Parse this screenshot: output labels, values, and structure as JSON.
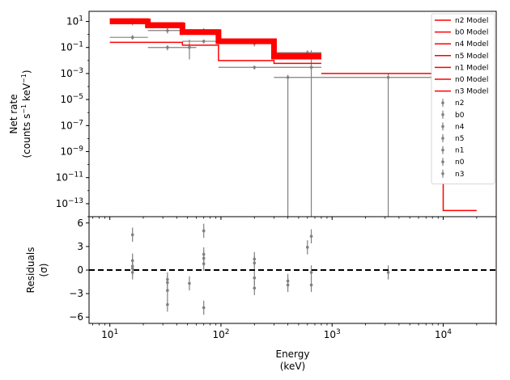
{
  "chart_data": {
    "type": "line",
    "xlabel": [
      "Energy",
      "(keV)"
    ],
    "x_scale": "log",
    "xlim": [
      6.5,
      30000
    ],
    "x_ticks": [
      {
        "v": 10,
        "base": "10",
        "exp": "1"
      },
      {
        "v": 100,
        "base": "10",
        "exp": "2"
      },
      {
        "v": 1000,
        "base": "10",
        "exp": "3"
      },
      {
        "v": 10000,
        "base": "10",
        "exp": "4"
      }
    ],
    "top_panel": {
      "ylabel": [
        "Net rate",
        "(counts s",
        "−1",
        " keV",
        "−1",
        ")"
      ],
      "y_scale": "log",
      "ylim": [
        1e-14,
        60
      ],
      "y_ticks": [
        {
          "v": 10,
          "base": "10",
          "exp": "1"
        },
        {
          "v": 0.1,
          "base": "10",
          "exp": "−1"
        },
        {
          "v": 0.001,
          "base": "10",
          "exp": "−3"
        },
        {
          "v": 1e-05,
          "base": "10",
          "exp": "−5"
        },
        {
          "v": 1e-07,
          "base": "10",
          "exp": "−7"
        },
        {
          "v": 1e-09,
          "base": "10",
          "exp": "−9"
        },
        {
          "v": 1e-11,
          "base": "10",
          "exp": "−11"
        },
        {
          "v": 1e-13,
          "base": "10",
          "exp": "−13"
        }
      ],
      "model_color": "#ff0000",
      "data_color": "#808080",
      "model_steps": [
        {
          "edges": [
            10,
            22,
            45,
            95,
            300,
            800
          ],
          "values": [
            10,
            5,
            1.5,
            0.3,
            0.02
          ],
          "width": 7
        },
        {
          "edges": [
            10,
            22,
            45,
            95,
            300,
            800
          ],
          "values": [
            14,
            7,
            2,
            0.4,
            0.03
          ],
          "width": 3
        },
        {
          "edges": [
            10,
            22,
            45,
            95,
            300,
            800
          ],
          "values": [
            0.25,
            0.25,
            0.15,
            0.01,
            0.006
          ],
          "width": 1.5
        },
        {
          "edges": [
            10,
            22,
            45,
            95,
            300,
            800
          ],
          "values": [
            8,
            4,
            1.2,
            0.2,
            0.015
          ],
          "width": 1.5
        },
        {
          "edges": [
            800,
            10000,
            20000
          ],
          "values": [
            0.001,
            3e-14
          ],
          "width": 1.5
        }
      ],
      "data_points": [
        {
          "x": 16,
          "xlo": 10,
          "xhi": 22,
          "y": 12,
          "ylo": 8,
          "yhi": 18
        },
        {
          "x": 16,
          "xlo": 10,
          "xhi": 22,
          "y": 8,
          "ylo": 5,
          "yhi": 12
        },
        {
          "x": 16,
          "xlo": 10,
          "xhi": 22,
          "y": 0.6,
          "ylo": 0.4,
          "yhi": 0.9
        },
        {
          "x": 33,
          "xlo": 22,
          "xhi": 45,
          "y": 4,
          "ylo": 2.5,
          "yhi": 6
        },
        {
          "x": 33,
          "xlo": 22,
          "xhi": 45,
          "y": 2,
          "ylo": 1.2,
          "yhi": 3
        },
        {
          "x": 33,
          "xlo": 22,
          "xhi": 45,
          "y": 0.1,
          "ylo": 0.06,
          "yhi": 0.15
        },
        {
          "x": 52,
          "xlo": 45,
          "xhi": 60,
          "y": 0.1,
          "ylo": 0.012,
          "yhi": 0.4
        },
        {
          "x": 70,
          "xlo": 45,
          "xhi": 95,
          "y": 2,
          "ylo": 1.2,
          "yhi": 3
        },
        {
          "x": 70,
          "xlo": 45,
          "xhi": 95,
          "y": 1.5,
          "ylo": 1,
          "yhi": 2
        },
        {
          "x": 70,
          "xlo": 45,
          "xhi": 95,
          "y": 0.3,
          "ylo": 0.2,
          "yhi": 0.4
        },
        {
          "x": 200,
          "xlo": 100,
          "xhi": 300,
          "y": 0.2,
          "ylo": 0.12,
          "yhi": 0.3
        },
        {
          "x": 200,
          "xlo": 95,
          "xhi": 300,
          "y": 0.003,
          "ylo": 0.002,
          "yhi": 0.004
        },
        {
          "x": 600,
          "xlo": 300,
          "xhi": 800,
          "y": 0.04,
          "ylo": 0.025,
          "yhi": 0.06
        },
        {
          "x": 600,
          "xlo": 300,
          "xhi": 800,
          "y": 0.02,
          "ylo": 0.012,
          "yhi": 0.03
        },
        {
          "x": 400,
          "xlo": 300,
          "xhi": 800,
          "y": 0.0005,
          "ylo": 1e-15,
          "yhi": 0.0008
        },
        {
          "x": 650,
          "xlo": 300,
          "xhi": 800,
          "y": 0.003,
          "ylo": 1e-15,
          "yhi": 0.06
        },
        {
          "x": 3200,
          "xlo": 800,
          "xhi": 10000,
          "y": 0.0005,
          "ylo": 1e-15,
          "yhi": 0.001
        }
      ],
      "legend": {
        "position": "top-right",
        "model_entries": [
          "n2 Model",
          "b0 Model",
          "n4 Model",
          "n5 Model",
          "n1 Model",
          "n0 Model",
          "n3 Model"
        ],
        "data_entries": [
          "n2",
          "b0",
          "n4",
          "n5",
          "n1",
          "n0",
          "n3"
        ]
      }
    },
    "bottom_panel": {
      "ylabel": [
        "Residuals",
        "(σ)"
      ],
      "ylim": [
        -6.8,
        6.8
      ],
      "y_ticks": [
        6,
        3,
        0,
        -3,
        -6
      ],
      "y_tick_labels": [
        "6",
        "3",
        "0",
        "−3",
        "−6"
      ],
      "zero_line": "dashed",
      "residuals": [
        {
          "x": 16,
          "y": 4.5
        },
        {
          "x": 16,
          "y": 1.2
        },
        {
          "x": 16,
          "y": 0.5
        },
        {
          "x": 16,
          "y": 0.2
        },
        {
          "x": 16,
          "y": -0.3
        },
        {
          "x": 33,
          "y": -1.2
        },
        {
          "x": 33,
          "y": -1.6
        },
        {
          "x": 33,
          "y": -2.6
        },
        {
          "x": 33,
          "y": -4.4
        },
        {
          "x": 52,
          "y": -1.7
        },
        {
          "x": 70,
          "y": 5
        },
        {
          "x": 70,
          "y": 2
        },
        {
          "x": 70,
          "y": 1.5
        },
        {
          "x": 70,
          "y": 0.8
        },
        {
          "x": 70,
          "y": -4.8
        },
        {
          "x": 200,
          "y": 1.4
        },
        {
          "x": 200,
          "y": 0.9
        },
        {
          "x": 200,
          "y": -1
        },
        {
          "x": 200,
          "y": -2.3
        },
        {
          "x": 400,
          "y": -1.4
        },
        {
          "x": 400,
          "y": -1.9
        },
        {
          "x": 600,
          "y": 2.9
        },
        {
          "x": 650,
          "y": 4.3
        },
        {
          "x": 650,
          "y": -0.3
        },
        {
          "x": 650,
          "y": -1.9
        },
        {
          "x": 3200,
          "y": -0.3
        }
      ]
    }
  }
}
